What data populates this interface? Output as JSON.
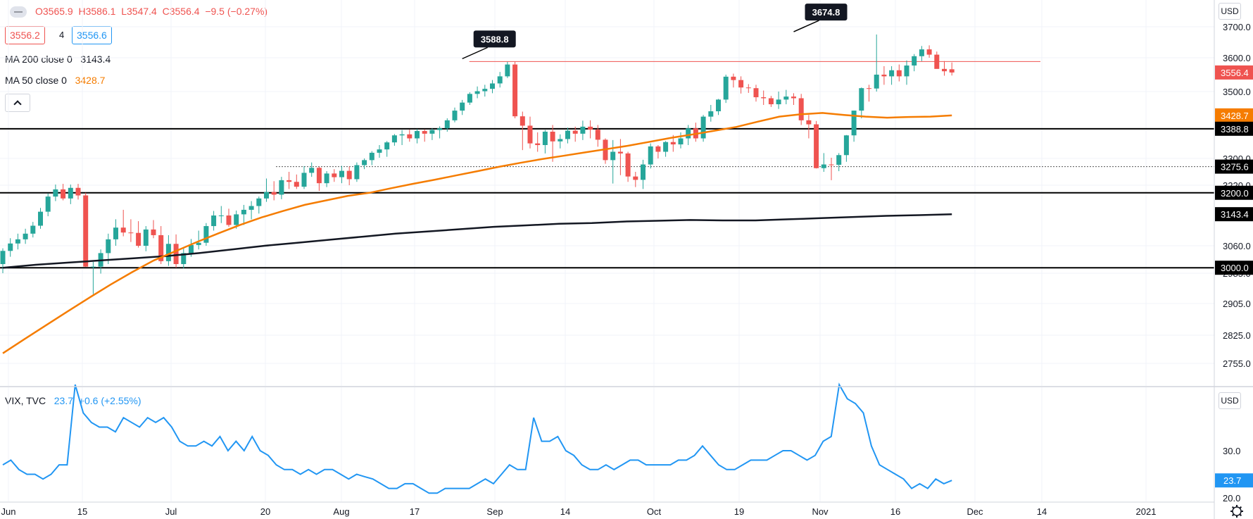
{
  "legend": {
    "ohlc": {
      "o": "O3565.9",
      "h": "H3586.1",
      "l": "L3547.4",
      "c": "C3556.4",
      "chg": "−9.5 (−0.27%)"
    },
    "bid": "3556.2",
    "spread": "4",
    "ask": "3556.6",
    "ma200_label": "MA 200 close 0",
    "ma200_value": "3143.4",
    "ma50_label": "MA 50 close 0",
    "ma50_value": "3428.7",
    "vix_label": "VIX, TVC",
    "vix_value": "23.7",
    "vix_change": "+0.6 (+2.55%)",
    "currency": "USD"
  },
  "colors": {
    "up": "#26a69a",
    "down": "#ef5350",
    "ma50": "#f57c00",
    "ma200": "#131722",
    "vix": "#2196f3",
    "resistance": "#ef5350"
  },
  "chart_data": [
    {
      "type": "candlestick",
      "title": "",
      "y_ticks": [
        3700.0,
        3600.0,
        3500.0,
        3300.0,
        3220.0,
        3060.0,
        2985.0,
        2905.0,
        2825.0,
        2755.0
      ],
      "x_ticks": [
        "Jun",
        "15",
        "Jul",
        "20",
        "Aug",
        "17",
        "Sep",
        "14",
        "Oct",
        "19",
        "Nov",
        "16",
        "Dec",
        "14",
        "2021"
      ],
      "price_labels": [
        {
          "value": 3556.4,
          "text": "3556.4",
          "kind": "last"
        },
        {
          "value": 3428.7,
          "text": "3428.7",
          "kind": "ma50"
        },
        {
          "value": 3388.8,
          "text": "3388.8",
          "kind": "level"
        },
        {
          "value": 3275.6,
          "text": "3275.6",
          "kind": "dotted"
        },
        {
          "value": 3200.0,
          "text": "3200.0",
          "kind": "level"
        },
        {
          "value": 3143.4,
          "text": "3143.4",
          "kind": "ma200"
        },
        {
          "value": 3000.0,
          "text": "3000.0",
          "kind": "level"
        }
      ],
      "horizontal_levels": [
        3388.8,
        3200.0,
        3000.0
      ],
      "resistance_line": 3588.8,
      "dotted_level": 3275.6,
      "annotations": [
        {
          "text": "3588.8",
          "date_index": 61,
          "value": 3588.8
        },
        {
          "text": "3674.8",
          "date_index": 105,
          "value": 3674.8
        }
      ],
      "ohlc": [
        [
          3010,
          3053,
          2985,
          3046
        ],
        [
          3046,
          3080,
          3030,
          3066
        ],
        [
          3066,
          3092,
          3050,
          3077
        ],
        [
          3077,
          3105,
          3065,
          3092
        ],
        [
          3092,
          3123,
          3082,
          3113
        ],
        [
          3113,
          3160,
          3105,
          3150
        ],
        [
          3150,
          3198,
          3138,
          3190
        ],
        [
          3190,
          3222,
          3178,
          3209
        ],
        [
          3209,
          3224,
          3180,
          3185
        ],
        [
          3185,
          3222,
          3170,
          3213
        ],
        [
          3213,
          3224,
          3182,
          3193
        ],
        [
          3193,
          3200,
          3002,
          3003
        ],
        [
          3003,
          3016,
          2930,
          3003
        ],
        [
          3003,
          3050,
          2984,
          3040
        ],
        [
          3040,
          3092,
          3010,
          3077
        ],
        [
          3077,
          3130,
          3060,
          3108
        ],
        [
          3108,
          3155,
          3085,
          3095
        ],
        [
          3095,
          3130,
          3070,
          3094
        ],
        [
          3094,
          3125,
          3055,
          3060
        ],
        [
          3060,
          3112,
          3045,
          3103
        ],
        [
          3103,
          3128,
          3080,
          3088
        ],
        [
          3088,
          3112,
          3010,
          3018
        ],
        [
          3018,
          3088,
          3005,
          3065
        ],
        [
          3065,
          3090,
          3000,
          3010
        ],
        [
          3010,
          3053,
          2998,
          3040
        ],
        [
          3040,
          3078,
          3030,
          3062
        ],
        [
          3062,
          3100,
          3050,
          3068
        ],
        [
          3068,
          3120,
          3060,
          3112
        ],
        [
          3112,
          3152,
          3100,
          3140
        ],
        [
          3140,
          3165,
          3120,
          3140
        ],
        [
          3140,
          3158,
          3110,
          3115
        ],
        [
          3115,
          3153,
          3105,
          3143
        ],
        [
          3143,
          3168,
          3115,
          3155
        ],
        [
          3155,
          3178,
          3130,
          3165
        ],
        [
          3165,
          3190,
          3145,
          3185
        ],
        [
          3185,
          3240,
          3176,
          3202
        ],
        [
          3202,
          3232,
          3180,
          3195
        ],
        [
          3195,
          3245,
          3183,
          3235
        ],
        [
          3235,
          3260,
          3210,
          3230
        ],
        [
          3230,
          3252,
          3210,
          3216
        ],
        [
          3216,
          3277,
          3210,
          3257
        ],
        [
          3257,
          3288,
          3245,
          3272
        ],
        [
          3272,
          3275,
          3205,
          3226
        ],
        [
          3226,
          3262,
          3215,
          3255
        ],
        [
          3255,
          3268,
          3230,
          3244
        ],
        [
          3244,
          3278,
          3226,
          3263
        ],
        [
          3263,
          3276,
          3220,
          3238
        ],
        [
          3238,
          3288,
          3230,
          3280
        ],
        [
          3280,
          3300,
          3268,
          3295
        ],
        [
          3295,
          3322,
          3280,
          3317
        ],
        [
          3317,
          3340,
          3302,
          3327
        ],
        [
          3327,
          3352,
          3305,
          3348
        ],
        [
          3348,
          3373,
          3338,
          3369
        ],
        [
          3369,
          3385,
          3340,
          3372
        ],
        [
          3372,
          3386,
          3350,
          3360
        ],
        [
          3360,
          3388,
          3345,
          3382
        ],
        [
          3382,
          3387,
          3350,
          3374
        ],
        [
          3374,
          3390,
          3355,
          3385
        ],
        [
          3385,
          3396,
          3360,
          3390
        ],
        [
          3390,
          3420,
          3380,
          3414
        ],
        [
          3414,
          3452,
          3408,
          3443
        ],
        [
          3443,
          3475,
          3430,
          3467
        ],
        [
          3467,
          3498,
          3460,
          3493
        ],
        [
          3493,
          3515,
          3480,
          3501
        ],
        [
          3501,
          3520,
          3485,
          3508
        ],
        [
          3508,
          3534,
          3495,
          3524
        ],
        [
          3524,
          3558,
          3512,
          3545
        ],
        [
          3545,
          3588,
          3540,
          3580
        ],
        [
          3580,
          3588,
          3420,
          3426
        ],
        [
          3426,
          3440,
          3325,
          3398
        ],
        [
          3398,
          3425,
          3330,
          3345
        ],
        [
          3345,
          3378,
          3320,
          3340
        ],
        [
          3340,
          3385,
          3315,
          3380
        ],
        [
          3380,
          3400,
          3290,
          3351
        ],
        [
          3351,
          3372,
          3330,
          3358
        ],
        [
          3358,
          3392,
          3345,
          3383
        ],
        [
          3383,
          3395,
          3350,
          3374
        ],
        [
          3374,
          3413,
          3355,
          3395
        ],
        [
          3395,
          3414,
          3360,
          3386
        ],
        [
          3386,
          3400,
          3335,
          3356
        ],
        [
          3356,
          3360,
          3284,
          3295
        ],
        [
          3295,
          3355,
          3225,
          3320
        ],
        [
          3320,
          3358,
          3250,
          3315
        ],
        [
          3315,
          3320,
          3230,
          3246
        ],
        [
          3246,
          3260,
          3215,
          3236
        ],
        [
          3236,
          3296,
          3210,
          3282
        ],
        [
          3282,
          3345,
          3270,
          3336
        ],
        [
          3336,
          3340,
          3300,
          3320
        ],
        [
          3320,
          3352,
          3305,
          3349
        ],
        [
          3349,
          3370,
          3320,
          3342
        ],
        [
          3342,
          3378,
          3330,
          3360
        ],
        [
          3360,
          3400,
          3340,
          3390
        ],
        [
          3390,
          3407,
          3350,
          3360
        ],
        [
          3360,
          3430,
          3350,
          3425
        ],
        [
          3425,
          3460,
          3410,
          3441
        ],
        [
          3441,
          3478,
          3430,
          3476
        ],
        [
          3476,
          3550,
          3466,
          3544
        ],
        [
          3544,
          3553,
          3512,
          3534
        ],
        [
          3534,
          3545,
          3494,
          3512
        ],
        [
          3512,
          3522,
          3496,
          3510
        ],
        [
          3510,
          3520,
          3470,
          3483
        ],
        [
          3483,
          3503,
          3460,
          3480
        ],
        [
          3480,
          3487,
          3454,
          3462
        ],
        [
          3462,
          3500,
          3448,
          3476
        ],
        [
          3476,
          3505,
          3462,
          3485
        ],
        [
          3485,
          3495,
          3460,
          3480
        ],
        [
          3480,
          3493,
          3400,
          3414
        ],
        [
          3414,
          3430,
          3360,
          3402
        ],
        [
          3402,
          3412,
          3270,
          3271
        ],
        [
          3271,
          3316,
          3260,
          3282
        ],
        [
          3282,
          3302,
          3235,
          3281
        ],
        [
          3281,
          3316,
          3262,
          3310
        ],
        [
          3310,
          3370,
          3290,
          3369
        ],
        [
          3369,
          3443,
          3350,
          3443
        ],
        [
          3443,
          3512,
          3420,
          3510
        ],
        [
          3510,
          3520,
          3470,
          3509
        ],
        [
          3509,
          3675,
          3500,
          3550
        ],
        [
          3550,
          3575,
          3520,
          3545
        ],
        [
          3545,
          3575,
          3520,
          3563
        ],
        [
          3563,
          3580,
          3530,
          3545
        ],
        [
          3545,
          3592,
          3520,
          3577
        ],
        [
          3577,
          3612,
          3560,
          3605
        ],
        [
          3605,
          3638,
          3590,
          3627
        ],
        [
          3627,
          3640,
          3600,
          3610
        ],
        [
          3610,
          3620,
          3570,
          3567
        ],
        [
          3567,
          3590,
          3547,
          3560
        ],
        [
          3565.9,
          3586.1,
          3547.4,
          3556.4
        ]
      ],
      "ma50": [
        2780,
        2815,
        2850,
        2885,
        2920,
        2955,
        2988,
        3020,
        3045,
        3070,
        3093,
        3115,
        3135,
        3152,
        3168,
        3180,
        3192,
        3200,
        3212,
        3224,
        3236,
        3249,
        3262,
        3275,
        3287,
        3298,
        3308,
        3318,
        3328,
        3338,
        3350,
        3362,
        3372,
        3383,
        3394,
        3410,
        3425,
        3432,
        3436,
        3430,
        3425,
        3422,
        3424,
        3425,
        3428.7
      ],
      "ma200": [
        3000,
        3008,
        3014,
        3020,
        3026,
        3032,
        3040,
        3050,
        3060,
        3068,
        3076,
        3084,
        3092,
        3098,
        3104,
        3110,
        3114,
        3118,
        3120,
        3124,
        3126,
        3128,
        3127,
        3127,
        3130,
        3133,
        3136,
        3139,
        3141,
        3143.4
      ],
      "currency": "USD"
    },
    {
      "type": "line",
      "title": "VIX, TVC",
      "y_ticks": [
        30.0,
        20.0
      ],
      "last": 23.7,
      "values": [
        27,
        28,
        26,
        25,
        25,
        24,
        25,
        27,
        27,
        44,
        38,
        36,
        35,
        35,
        34,
        37,
        36,
        35,
        37,
        36,
        37,
        35,
        32,
        31,
        31,
        32,
        31,
        33,
        30,
        32,
        30,
        33,
        30,
        29,
        27,
        26,
        26,
        25,
        26,
        25,
        26,
        26,
        25,
        24,
        25,
        24.5,
        24,
        23,
        22,
        22,
        23,
        23,
        22,
        21,
        21,
        22,
        22,
        22,
        22,
        23,
        24,
        23,
        25,
        27,
        26,
        26,
        37,
        32,
        32,
        33,
        30,
        29,
        27,
        26,
        26,
        27,
        26,
        27,
        28,
        28,
        27,
        27,
        27,
        27,
        28,
        28,
        29,
        31,
        29,
        27,
        26,
        26,
        27,
        28,
        28,
        28,
        29,
        30,
        30,
        29,
        28,
        29,
        32,
        33,
        44,
        41,
        40,
        38,
        31,
        27,
        26,
        25,
        24,
        22,
        23,
        22,
        24,
        23,
        23.7
      ]
    }
  ]
}
